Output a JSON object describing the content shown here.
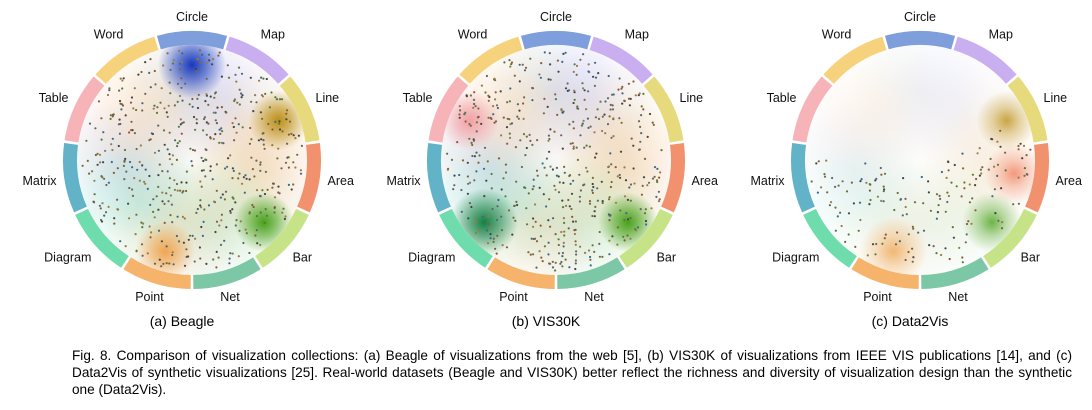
{
  "categories": [
    {
      "name": "Circle",
      "color": "#7f9fdc"
    },
    {
      "name": "Map",
      "color": "#c9aff0"
    },
    {
      "name": "Line",
      "color": "#e6da7c"
    },
    {
      "name": "Area",
      "color": "#f2916e"
    },
    {
      "name": "Bar",
      "color": "#c6e388"
    },
    {
      "name": "Net",
      "color": "#7cc7a6"
    },
    {
      "name": "Point",
      "color": "#f5b36c"
    },
    {
      "name": "Diagram",
      "color": "#6fdcae"
    },
    {
      "name": "Matrix",
      "color": "#62b3c7"
    },
    {
      "name": "Table",
      "color": "#f6b3b8"
    },
    {
      "name": "Word",
      "color": "#f7d27c"
    }
  ],
  "panels": [
    {
      "caption": "(a) Beagle",
      "density_hotspots": [
        "Circle",
        "Line",
        "Bar",
        "Point"
      ],
      "dot_density": "high"
    },
    {
      "caption": "(b) VIS30K",
      "density_hotspots": [
        "Diagram",
        "Table",
        "Bar"
      ],
      "dot_density": "high"
    },
    {
      "caption": "(c) Data2Vis",
      "density_hotspots": [
        "Point",
        "Bar",
        "Area",
        "Line"
      ],
      "dot_density": "low"
    }
  ],
  "figure_caption": "Fig. 8. Comparison of visualization collections: (a) Beagle of visualizations from the web [5], (b) VIS30K of visualizations from IEEE VIS publications [14], and (c) Data2Vis of synthetic visualizations [25]. Real-world datasets (Beagle and VIS30K) better reflect the richness and diversity of visualization design than the synthetic one (Data2Vis)."
}
